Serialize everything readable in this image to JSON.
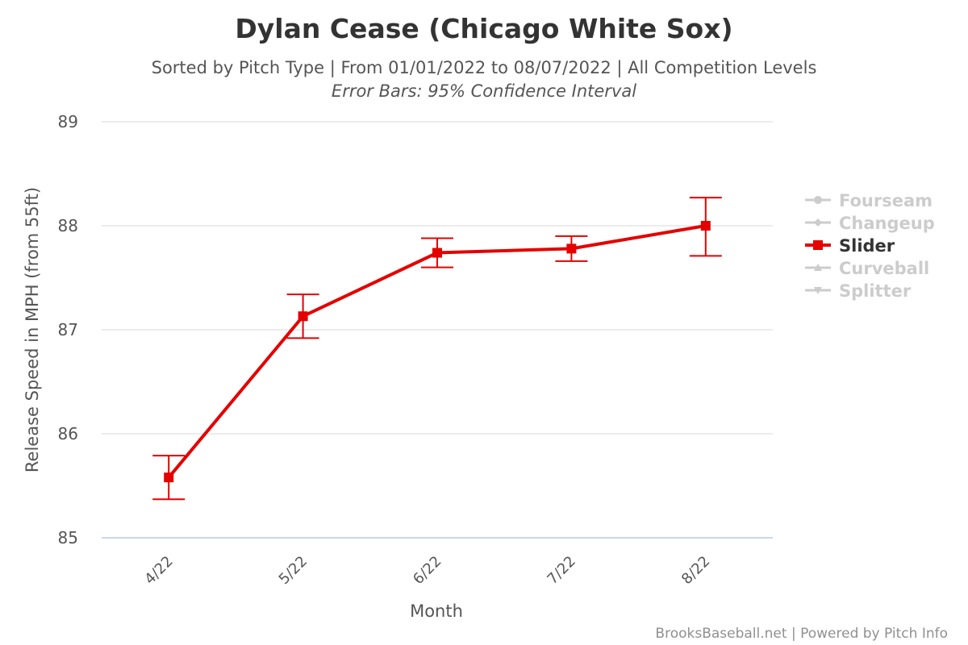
{
  "chart_data": {
    "type": "line",
    "title": "Dylan Cease (Chicago White Sox)",
    "subtitle": "Sorted by Pitch Type | From 01/01/2022 to 08/07/2022 | All Competition Levels",
    "subtitle2": "Error Bars: 95% Confidence Interval",
    "xlabel": "Month",
    "ylabel": "Release Speed in MPH (from 55ft)",
    "categories": [
      "4/22",
      "5/22",
      "6/22",
      "7/22",
      "8/22"
    ],
    "ylim": [
      85,
      89
    ],
    "yticks": [
      "85",
      "86",
      "87",
      "88",
      "89"
    ],
    "grid": true,
    "legend_position": "right",
    "series": [
      {
        "name": "Slider",
        "color": "#e50000",
        "visible": true,
        "marker": "square",
        "values": [
          85.58,
          87.13,
          87.74,
          87.78,
          88.0
        ],
        "error_low": [
          85.37,
          86.92,
          87.6,
          87.66,
          87.71
        ],
        "error_high": [
          85.79,
          87.34,
          87.88,
          87.9,
          88.27
        ]
      }
    ],
    "legend": [
      {
        "name": "Fourseam",
        "marker": "circle",
        "active": false
      },
      {
        "name": "Changeup",
        "marker": "diamond",
        "active": false
      },
      {
        "name": "Slider",
        "marker": "square",
        "active": true
      },
      {
        "name": "Curveball",
        "marker": "triangle",
        "active": false
      },
      {
        "name": "Splitter",
        "marker": "triangle-down",
        "active": false
      }
    ],
    "credits": "BrooksBaseball.net | Powered by Pitch Info"
  },
  "colors": {
    "active_series": "#e50000",
    "inactive_legend": "#cccccc",
    "active_legend_text": "#333333",
    "grid": "#e6e6e6",
    "axis_line": "#ccd6eb"
  }
}
